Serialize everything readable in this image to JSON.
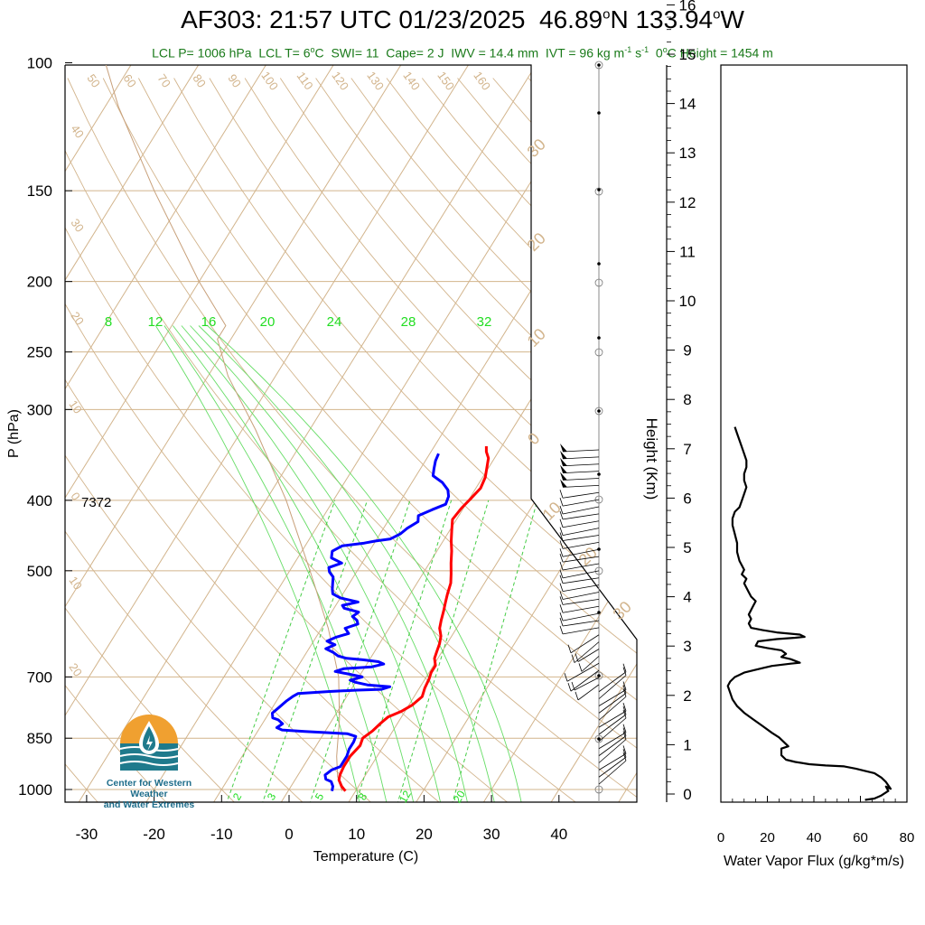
{
  "title": {
    "flight": "AF303:",
    "time": "21:57 UTC 01/23/2025",
    "lat": "46.89",
    "lat_suffix": "N",
    "lon": "133.94",
    "lon_suffix": "W",
    "degree": "o"
  },
  "subtitle": {
    "lcl_p": "LCL P= 1006 hPa",
    "lcl_t": "LCL T= 6",
    "lcl_t_unit": "C",
    "swi": "SWI= 11",
    "cape": "Cape= 2 J",
    "iwv": "IWV = 14.4 mm",
    "ivt_pre": "IVT = 96 kg m",
    "ivt_exp1": "-1",
    "ivt_mid": " s",
    "ivt_exp2": "-1",
    "freezing_pre": "0",
    "freezing_post": "C Height = 1454 m",
    "degree": "o"
  },
  "logo": {
    "line1": "Center for Western Weather",
    "line2": "and Water Extremes"
  },
  "colors": {
    "temperature": "#ff0000",
    "dewpoint": "#0000ff",
    "dry_adiabat": "#d2b48c",
    "isotherm": "#d2b48c",
    "moist_adiabat": "#66dd66",
    "mixing_ratio": "#44cc44",
    "title_green": "#1a7a1a"
  },
  "chart_data": [
    {
      "type": "line",
      "name": "skew-t",
      "xlabel": "Temperature (C)",
      "ylabel": "P (hPa)",
      "x_ticks": [
        "-30",
        "-20",
        "-10",
        "0",
        "10",
        "20",
        "30",
        "40"
      ],
      "y_ticks": [
        "100",
        "150",
        "200",
        "250",
        "300",
        "400",
        "500",
        "700",
        "850",
        "1000"
      ],
      "y_scale": "log",
      "annotation": "7372",
      "mixing_ratio_labels_top": [
        "8",
        "12",
        "16",
        "20",
        "24",
        "28",
        "32"
      ],
      "mixing_ratio_labels_bottom": [
        "2",
        "3",
        "5",
        "8",
        "12",
        "20"
      ],
      "dry_adiabat_labels": [
        "50",
        "60",
        "70",
        "80",
        "90",
        "100",
        "110",
        "120",
        "130",
        "140",
        "150",
        "160",
        "40",
        "30",
        "20",
        "10",
        "0",
        "10",
        "20"
      ],
      "right_isotherm_labels": [
        "30",
        "20",
        "10",
        "0",
        "10",
        "20",
        "30"
      ],
      "series": [
        {
          "key": "temperature",
          "points": [
            [
              8.5,
              1005
            ],
            [
              7.5,
              990
            ],
            [
              6.5,
              970
            ],
            [
              6.2,
              955
            ],
            [
              6.0,
              930
            ],
            [
              6.0,
              900
            ],
            [
              6.5,
              870
            ],
            [
              6.2,
              850
            ],
            [
              7.0,
              830
            ],
            [
              7.5,
              810
            ],
            [
              8.0,
              795
            ],
            [
              9.5,
              780
            ],
            [
              10.5,
              765
            ],
            [
              11.2,
              745
            ],
            [
              10.8,
              725
            ],
            [
              10.6,
              705
            ],
            [
              10.3,
              690
            ],
            [
              10.3,
              675
            ],
            [
              9.5,
              660
            ],
            [
              9.2,
              645
            ],
            [
              8.9,
              630
            ],
            [
              8.4,
              615
            ],
            [
              7.5,
              600
            ],
            [
              7.0,
              585
            ],
            [
              6.5,
              568
            ],
            [
              6.0,
              553
            ],
            [
              5.5,
              538
            ],
            [
              5.0,
              520
            ],
            [
              4.2,
              505
            ],
            [
              3.2,
              488
            ],
            [
              2.2,
              470
            ],
            [
              1.2,
              455
            ],
            [
              0.3,
              440
            ],
            [
              -0.6,
              425
            ],
            [
              -0.3,
              410
            ],
            [
              0.2,
              398
            ],
            [
              0.7,
              385
            ],
            [
              0.4,
              372
            ],
            [
              -0.3,
              360
            ],
            [
              -0.9,
              350
            ],
            [
              -1.8,
              343
            ],
            [
              -2.3,
              337
            ]
          ]
        },
        {
          "key": "dewpoint",
          "points": [
            [
              6.5,
              1005
            ],
            [
              6.2,
              990
            ],
            [
              5.5,
              975
            ],
            [
              4.5,
              968
            ],
            [
              4.0,
              955
            ],
            [
              4.5,
              940
            ],
            [
              5.5,
              930
            ],
            [
              5.5,
              900
            ],
            [
              5.2,
              880
            ],
            [
              5.2,
              860
            ],
            [
              5.0,
              845
            ],
            [
              3.5,
              838
            ],
            [
              -3.0,
              832
            ],
            [
              -6.5,
              828
            ],
            [
              -7.5,
              822
            ],
            [
              -7.0,
              812
            ],
            [
              -8.0,
              802
            ],
            [
              -9.0,
              797
            ],
            [
              -9.5,
              785
            ],
            [
              -9.0,
              770
            ],
            [
              -8.5,
              755
            ],
            [
              -8.0,
              745
            ],
            [
              -7.5,
              738
            ],
            [
              -3.0,
              733
            ],
            [
              1.0,
              730
            ],
            [
              4.5,
              728
            ],
            [
              5.5,
              722
            ],
            [
              2.0,
              718
            ],
            [
              0.0,
              712
            ],
            [
              -1.0,
              707
            ],
            [
              0.5,
              700
            ],
            [
              -2.0,
              693
            ],
            [
              -4.0,
              688
            ],
            [
              -3.0,
              682
            ],
            [
              1.0,
              678
            ],
            [
              2.5,
              672
            ],
            [
              1.5,
              667
            ],
            [
              -1.0,
              663
            ],
            [
              -3.5,
              660
            ],
            [
              -5.0,
              655
            ],
            [
              -6.0,
              648
            ],
            [
              -7.5,
              640
            ],
            [
              -6.5,
              632
            ],
            [
              -8.0,
              625
            ],
            [
              -7.0,
              617
            ],
            [
              -5.5,
              610
            ],
            [
              -6.5,
              600
            ],
            [
              -5.0,
              592
            ],
            [
              -5.5,
              585
            ],
            [
              -6.5,
              578
            ],
            [
              -6.0,
              570
            ],
            [
              -8.5,
              563
            ],
            [
              -9.0,
              558
            ],
            [
              -7.0,
              552
            ],
            [
              -10.0,
              545
            ],
            [
              -11.5,
              538
            ],
            [
              -12.0,
              530
            ],
            [
              -12.5,
              520
            ],
            [
              -13.0,
              510
            ],
            [
              -14.0,
              502
            ],
            [
              -14.5,
              495
            ],
            [
              -13.0,
              488
            ],
            [
              -15.0,
              480
            ],
            [
              -15.5,
              470
            ],
            [
              -14.5,
              462
            ],
            [
              -11.5,
              458
            ],
            [
              -10.0,
              455
            ],
            [
              -8.0,
              452
            ],
            [
              -7.0,
              445
            ],
            [
              -6.5,
              437
            ],
            [
              -5.5,
              428
            ],
            [
              -6.0,
              420
            ],
            [
              -4.5,
              412
            ],
            [
              -3.0,
              405
            ],
            [
              -3.3,
              395
            ],
            [
              -4.0,
              387
            ],
            [
              -5.5,
              378
            ],
            [
              -7.5,
              370
            ],
            [
              -8.0,
              362
            ],
            [
              -8.5,
              353
            ],
            [
              -8.7,
              345
            ]
          ]
        }
      ],
      "wind_barbs": 48
    },
    {
      "type": "line",
      "name": "height-scale",
      "ylabel": "Height (Km)",
      "y_ticks": [
        "0",
        "1",
        "2",
        "3",
        "4",
        "5",
        "6",
        "7",
        "8",
        "9",
        "10",
        "11",
        "12",
        "13",
        "14",
        "15",
        "16"
      ],
      "ylim": [
        0,
        16
      ]
    },
    {
      "type": "line",
      "name": "water-vapor-flux",
      "xlabel": "Water Vapor Flux (g/kg*m/s)",
      "x_ticks": [
        "0",
        "20",
        "40",
        "60",
        "80"
      ],
      "xlim": [
        0,
        80
      ],
      "ylim": [
        -0.2,
        16.3
      ],
      "points": [
        [
          62,
          -0.15
        ],
        [
          66,
          -0.12
        ],
        [
          69,
          -0.05
        ],
        [
          72,
          0.05
        ],
        [
          71,
          0.15
        ],
        [
          73,
          0.1
        ],
        [
          71,
          0.25
        ],
        [
          69,
          0.35
        ],
        [
          66,
          0.45
        ],
        [
          62,
          0.5
        ],
        [
          58,
          0.55
        ],
        [
          53,
          0.6
        ],
        [
          45,
          0.62
        ],
        [
          38,
          0.65
        ],
        [
          32,
          0.7
        ],
        [
          28,
          0.75
        ],
        [
          26,
          0.85
        ],
        [
          26,
          1.0
        ],
        [
          29,
          1.05
        ],
        [
          27,
          1.15
        ],
        [
          25,
          1.25
        ],
        [
          22,
          1.35
        ],
        [
          18,
          1.5
        ],
        [
          14,
          1.65
        ],
        [
          10,
          1.8
        ],
        [
          7,
          1.95
        ],
        [
          5,
          2.1
        ],
        [
          4,
          2.25
        ],
        [
          3,
          2.4
        ],
        [
          4,
          2.5
        ],
        [
          6,
          2.6
        ],
        [
          8,
          2.65
        ],
        [
          10,
          2.7
        ],
        [
          14,
          2.75
        ],
        [
          18,
          2.8
        ],
        [
          22,
          2.85
        ],
        [
          30,
          2.9
        ],
        [
          34,
          2.92
        ],
        [
          30,
          3.0
        ],
        [
          26,
          3.05
        ],
        [
          28,
          3.12
        ],
        [
          26,
          3.2
        ],
        [
          20,
          3.25
        ],
        [
          15,
          3.3
        ],
        [
          16,
          3.4
        ],
        [
          24,
          3.45
        ],
        [
          32,
          3.48
        ],
        [
          36,
          3.5
        ],
        [
          34,
          3.55
        ],
        [
          24,
          3.6
        ],
        [
          18,
          3.65
        ],
        [
          13,
          3.7
        ],
        [
          12,
          3.8
        ],
        [
          13,
          3.9
        ],
        [
          12,
          4.0
        ],
        [
          13,
          4.1
        ],
        [
          14,
          4.2
        ],
        [
          15,
          4.3
        ],
        [
          13,
          4.4
        ],
        [
          12,
          4.5
        ],
        [
          10,
          4.7
        ],
        [
          11,
          4.8
        ],
        [
          9,
          4.9
        ],
        [
          10,
          5.0
        ],
        [
          8,
          5.2
        ],
        [
          7,
          5.4
        ],
        [
          7,
          5.6
        ],
        [
          6,
          5.8
        ],
        [
          5,
          6.0
        ],
        [
          5,
          6.15
        ],
        [
          6,
          6.3
        ],
        [
          8,
          6.4
        ],
        [
          9,
          6.55
        ],
        [
          10,
          6.7
        ],
        [
          11,
          6.85
        ],
        [
          10,
          7.0
        ],
        [
          10,
          7.15
        ],
        [
          11,
          7.3
        ],
        [
          11,
          7.45
        ],
        [
          10,
          7.6
        ],
        [
          9,
          7.75
        ],
        [
          8,
          7.9
        ],
        [
          7,
          8.05
        ],
        [
          6,
          8.2
        ]
      ]
    }
  ]
}
